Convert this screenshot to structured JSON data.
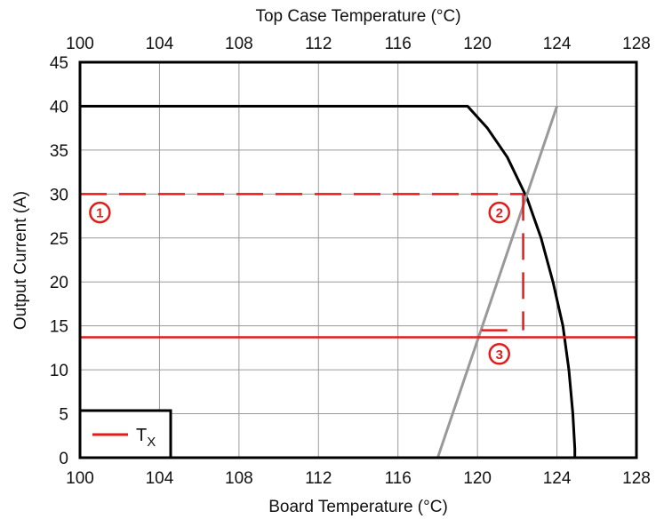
{
  "chart_data": {
    "type": "line",
    "title": "",
    "xlabel": "Board Temperature (°C)",
    "x2label": "Top Case Temperature (°C)",
    "ylabel": "Output Current (A)",
    "xlim": [
      100,
      128
    ],
    "x2lim": [
      100,
      128
    ],
    "ylim": [
      0,
      45
    ],
    "xticks": [
      "100",
      "104",
      "108",
      "112",
      "116",
      "120",
      "124",
      "128"
    ],
    "x2ticks": [
      "100",
      "104",
      "108",
      "112",
      "116",
      "120",
      "124",
      "128"
    ],
    "yticks": [
      "0",
      "5",
      "10",
      "15",
      "20",
      "25",
      "30",
      "35",
      "40",
      "45"
    ],
    "grid": true,
    "colors": {
      "derating": "#000000",
      "case_line": "#999999",
      "tx_line": "#e31b1b",
      "grid": "#9a9a9a"
    },
    "series": [
      {
        "name": "",
        "style": "solid-black",
        "x": [
          100,
          119.5,
          120.5,
          121.5,
          122.5,
          123.2,
          123.8,
          124.3,
          124.6,
          124.8,
          124.9,
          124.9
        ],
        "y": [
          40,
          40,
          37.5,
          34.2,
          29.5,
          25,
          20,
          15,
          10,
          5,
          1,
          0
        ]
      },
      {
        "name": "",
        "style": "solid-gray",
        "x": [
          118,
          124
        ],
        "y": [
          0,
          40
        ]
      },
      {
        "name": "TX",
        "style": "solid-red",
        "x": [
          100,
          128
        ],
        "y": [
          13.7,
          13.7
        ]
      },
      {
        "name": "",
        "style": "dashed-red",
        "x": [
          100,
          122.3
        ],
        "y": [
          30,
          30
        ]
      },
      {
        "name": "",
        "style": "dashed-red",
        "x": [
          122.3,
          122.3
        ],
        "y": [
          30,
          14.5
        ]
      },
      {
        "name": "",
        "style": "dashed-red",
        "x": [
          120.2,
          121.5
        ],
        "y": [
          14.5,
          14.5
        ]
      }
    ],
    "annotations": [
      {
        "label": "1",
        "x": 101,
        "y": 27.9
      },
      {
        "label": "2",
        "x": 121.1,
        "y": 27.9
      },
      {
        "label": "3",
        "x": 121.1,
        "y": 11.8
      }
    ],
    "legend": {
      "position": "bottom-left",
      "entries": [
        {
          "label": "T",
          "subscript": "X",
          "color": "#e31b1b"
        }
      ]
    }
  }
}
